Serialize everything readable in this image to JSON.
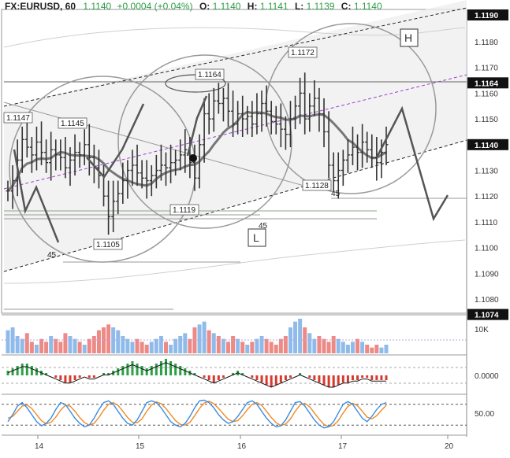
{
  "header": {
    "symbol": "FX:EURUSD, 60",
    "last": "1.1140",
    "change": "+0.0004 (+0.04%)",
    "o_label": "O:",
    "o": "1.1140",
    "h_label": "H:",
    "h": "1.1141",
    "l_label": "L:",
    "l": "1.1139",
    "c_label": "C:",
    "c": "1.1140"
  },
  "colors": {
    "up": "#2e9e48",
    "down": "#d63a2f",
    "bar": "#333333",
    "vol_up": "#8fbbea",
    "vol_down": "#ee8a86",
    "ma": "#777777",
    "channel": "#222222",
    "mid": "#9a3fd0",
    "stoch_k": "#3b8de0",
    "stoch_d": "#f08a24",
    "price_tag": "#111111"
  },
  "chart_data": {
    "type": "ohlc",
    "price_axis": {
      "ticks": [
        "1.1180",
        "1.1170",
        "1.1160",
        "1.1150",
        "1.1130",
        "1.1120",
        "1.1110",
        "1.1100",
        "1.1090",
        "1.1080"
      ],
      "tags": [
        {
          "text": "1.1164",
          "value": 1.1164
        },
        {
          "text": "1.1140",
          "value": 1.114
        },
        {
          "text": "1.1074",
          "value": 1.1074
        },
        {
          "text": "1.1190",
          "value": 1.119
        }
      ],
      "range": [
        1.1074,
        1.1192
      ]
    },
    "x_axis": {
      "ticks": [
        "14",
        "15",
        "16",
        "17",
        "20"
      ]
    },
    "closes": [
      1.1122,
      1.1126,
      1.1134,
      1.1142,
      1.1139,
      1.1136,
      1.1141,
      1.1137,
      1.1133,
      1.1138,
      1.1136,
      1.1135,
      1.1131,
      1.1134,
      1.1137,
      1.1136,
      1.114,
      1.1135,
      1.1131,
      1.1128,
      1.112,
      1.1112,
      1.1118,
      1.1121,
      1.1126,
      1.113,
      1.1132,
      1.1129,
      1.1127,
      1.1126,
      1.1128,
      1.113,
      1.1132,
      1.1131,
      1.1133,
      1.1134,
      1.1136,
      1.1138,
      1.1133,
      1.1127,
      1.114,
      1.1152,
      1.115,
      1.1157,
      1.1156,
      1.1158,
      1.1153,
      1.1148,
      1.1152,
      1.115,
      1.1151,
      1.1148,
      1.1152,
      1.1156,
      1.1153,
      1.1149,
      1.1148,
      1.1146,
      1.1144,
      1.115,
      1.1155,
      1.116,
      1.115,
      1.1155,
      1.1158,
      1.1152,
      1.1145,
      1.1132,
      1.1126,
      1.113,
      1.1134,
      1.1136,
      1.1139,
      1.1137,
      1.1141,
      1.1138,
      1.1135,
      1.1133,
      1.1137,
      1.114
    ],
    "swing_labels": [
      {
        "text": "1.1147",
        "value": 1.1147
      },
      {
        "text": "1.1145",
        "value": 1.1145
      },
      {
        "text": "1.1164",
        "value": 1.1164
      },
      {
        "text": "1.1172",
        "value": 1.1172
      },
      {
        "text": "1.1119",
        "value": 1.1119
      },
      {
        "text": "1.1105",
        "value": 1.1105
      },
      {
        "text": "1.1128",
        "value": 1.1128
      }
    ],
    "annotations": [
      {
        "text": "45"
      },
      {
        "text": "45"
      },
      {
        "text": "45"
      }
    ],
    "markers": [
      {
        "text": "H"
      },
      {
        "text": "L"
      }
    ],
    "volume": {
      "axis_label": "10K",
      "values": [
        8,
        9,
        6,
        5,
        7,
        4,
        3,
        5,
        4,
        6,
        5,
        4,
        7,
        6,
        5,
        4,
        3,
        5,
        6,
        8,
        9,
        10,
        9,
        8,
        6,
        5,
        4,
        5,
        4,
        3,
        4,
        5,
        6,
        4,
        3,
        5,
        6,
        7,
        5,
        9,
        10,
        11,
        8,
        7,
        6,
        5,
        4,
        6,
        5,
        4,
        3,
        4,
        5,
        6,
        5,
        4,
        3,
        5,
        6,
        9,
        11,
        12,
        9,
        7,
        5,
        6,
        5,
        4,
        6,
        5,
        4,
        3,
        4,
        5,
        4,
        3,
        2,
        3,
        2,
        3
      ]
    },
    "macd": {
      "axis_label": "0.0000",
      "values": [
        2,
        3,
        4,
        5,
        5,
        4,
        3,
        2,
        1,
        0,
        -1,
        -2,
        -3,
        -3,
        -2,
        -1,
        0,
        -1,
        -1,
        0,
        1,
        1,
        2,
        3,
        4,
        5,
        6,
        5,
        4,
        3,
        4,
        5,
        6,
        7,
        6,
        5,
        4,
        3,
        2,
        1,
        0,
        -1,
        -2,
        -3,
        -2,
        -1,
        0,
        1,
        2,
        1,
        0,
        -1,
        -2,
        -3,
        -4,
        -5,
        -4,
        -3,
        -2,
        -1,
        0,
        1,
        0,
        -1,
        -2,
        -3,
        -4,
        -5,
        -5,
        -4,
        -3,
        -3,
        -2,
        -2,
        -1,
        -1,
        -2,
        -2,
        -2,
        -2
      ]
    },
    "stochastic": {
      "axis_label": "50.00",
      "k": [
        30,
        50,
        75,
        85,
        70,
        50,
        30,
        18,
        25,
        40,
        65,
        85,
        80,
        60,
        40,
        25,
        15,
        20,
        40,
        65,
        85,
        90,
        80,
        60,
        40,
        25,
        20,
        35,
        60,
        85,
        90,
        85,
        70,
        50,
        30,
        20,
        15,
        25,
        45,
        70,
        90,
        92,
        85,
        70,
        50,
        35,
        25,
        30,
        45,
        65,
        85,
        90,
        80,
        60,
        40,
        25,
        15,
        18,
        35,
        60,
        85,
        88,
        75,
        55,
        35,
        20,
        12,
        15,
        30,
        55,
        80,
        88,
        80,
        60,
        40,
        30,
        45,
        65,
        80,
        85
      ],
      "d": [
        40,
        45,
        60,
        75,
        78,
        68,
        50,
        33,
        24,
        28,
        43,
        63,
        77,
        75,
        60,
        42,
        27,
        20,
        25,
        42,
        63,
        80,
        85,
        77,
        60,
        42,
        28,
        27,
        38,
        60,
        78,
        87,
        82,
        68,
        50,
        33,
        22,
        20,
        28,
        47,
        68,
        84,
        89,
        82,
        68,
        52,
        37,
        30,
        33,
        47,
        65,
        80,
        85,
        77,
        60,
        42,
        27,
        19,
        23,
        38,
        60,
        78,
        83,
        73,
        55,
        37,
        22,
        16,
        19,
        33,
        55,
        74,
        83,
        76,
        60,
        43,
        38,
        47,
        63,
        77
      ]
    }
  }
}
